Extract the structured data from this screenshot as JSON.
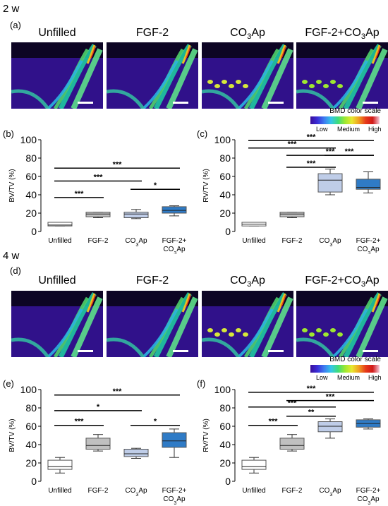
{
  "sections": [
    {
      "week": "2 w",
      "image_panel": "(a)",
      "image_titles": [
        "Unfilled",
        "FGF-2",
        "CO3Ap",
        "FGF-2+CO3Ap"
      ],
      "legend": {
        "title": "BMD color scale",
        "low": "Low",
        "medium": "Medium",
        "high": "High"
      }
    },
    {
      "week": "4 w",
      "image_panel": "(d)",
      "image_titles": [
        "Unfilled",
        "FGF-2",
        "CO3Ap",
        "FGF-2+CO3Ap"
      ],
      "legend": {
        "title": "BMD color scale",
        "low": "Low",
        "medium": "Medium",
        "high": "High"
      }
    }
  ],
  "chart_data": [
    {
      "panel": "(b)",
      "type": "boxplot",
      "ylabel": "BV/TV (%)",
      "ylim": [
        0,
        100
      ],
      "yticks": [
        "0",
        "20",
        "40",
        "60",
        "80",
        "100"
      ],
      "categories": [
        "Unfilled",
        "FGF-2",
        "CO3Ap",
        "FGF-2+ CO3Ap"
      ],
      "boxes": [
        {
          "min": 6,
          "q1": 6,
          "median": 7,
          "q3": 10,
          "max": 10,
          "fill": "#ffffff"
        },
        {
          "min": 15,
          "q1": 16,
          "median": 19,
          "q3": 21,
          "max": 21,
          "fill": "#c0c0c0"
        },
        {
          "min": 14,
          "q1": 15,
          "median": 19,
          "q3": 21,
          "max": 24,
          "fill": "#bfcde8"
        },
        {
          "min": 17,
          "q1": 20,
          "median": 23,
          "q3": 27,
          "max": 28,
          "fill": "#2f7bc6"
        }
      ],
      "significance": [
        {
          "from": 0,
          "to": 1,
          "y": 37,
          "label": "***"
        },
        {
          "from": 0,
          "to": 2,
          "y": 55,
          "label": "***"
        },
        {
          "from": 0,
          "to": 3,
          "y": 69,
          "label": "***"
        },
        {
          "from": 2,
          "to": 3,
          "y": 46,
          "label": "*"
        }
      ]
    },
    {
      "panel": "(c)",
      "type": "boxplot",
      "ylabel": "RV/TV (%)",
      "ylim": [
        0,
        100
      ],
      "yticks": [
        "0",
        "20",
        "40",
        "60",
        "80",
        "100"
      ],
      "categories": [
        "Unfilled",
        "FGF-2",
        "CO3Ap",
        "FGF-2+ CO3Ap"
      ],
      "boxes": [
        {
          "min": 6,
          "q1": 6,
          "median": 8,
          "q3": 10,
          "max": 10,
          "fill": "#ffffff"
        },
        {
          "min": 15,
          "q1": 16,
          "median": 19,
          "q3": 21,
          "max": 21,
          "fill": "#c0c0c0"
        },
        {
          "min": 40,
          "q1": 43,
          "median": 56,
          "q3": 63,
          "max": 68,
          "fill": "#bfcde8"
        },
        {
          "min": 42,
          "q1": 46,
          "median": 48,
          "q3": 57,
          "max": 65,
          "fill": "#2f7bc6"
        }
      ],
      "significance": [
        {
          "from": 2,
          "to": 3,
          "y": 83,
          "label": "***"
        },
        {
          "from": 0,
          "to": 2,
          "y": 91,
          "label": "***"
        },
        {
          "from": 1,
          "to": 3,
          "y": 83,
          "label": "***"
        },
        {
          "from": 0,
          "to": 3,
          "y": 99,
          "label": "***"
        },
        {
          "from": 1,
          "to": 2,
          "y": 70,
          "label": "***"
        }
      ]
    },
    {
      "panel": "(e)",
      "type": "boxplot",
      "ylabel": "BV/TV (%)",
      "ylim": [
        0,
        100
      ],
      "yticks": [
        "0",
        "20",
        "40",
        "60",
        "80",
        "100"
      ],
      "categories": [
        "Unfilled",
        "FGF-2",
        "CO3Ap",
        "FGF-2+ CO3Ap"
      ],
      "boxes": [
        {
          "min": 9,
          "q1": 13,
          "median": 16,
          "q3": 23,
          "max": 26,
          "fill": "#ffffff"
        },
        {
          "min": 33,
          "q1": 35,
          "median": 39,
          "q3": 47,
          "max": 51,
          "fill": "#c0c0c0"
        },
        {
          "min": 25,
          "q1": 27,
          "median": 30,
          "q3": 35,
          "max": 36,
          "fill": "#bfcde8"
        },
        {
          "min": 26,
          "q1": 37,
          "median": 44,
          "q3": 53,
          "max": 57,
          "fill": "#2f7bc6"
        }
      ],
      "significance": [
        {
          "from": 0,
          "to": 1,
          "y": 61,
          "label": "***"
        },
        {
          "from": 0,
          "to": 2,
          "y": 77,
          "label": "*"
        },
        {
          "from": 0,
          "to": 3,
          "y": 94,
          "label": "***"
        },
        {
          "from": 2,
          "to": 3,
          "y": 61,
          "label": "*"
        }
      ]
    },
    {
      "panel": "(f)",
      "type": "boxplot",
      "ylabel": "RV/TV (%)",
      "ylim": [
        0,
        100
      ],
      "yticks": [
        "0",
        "20",
        "40",
        "60",
        "80",
        "100"
      ],
      "categories": [
        "Unfilled",
        "FGF-2",
        "CO3Ap",
        "FGF-2+ CO3Ap"
      ],
      "boxes": [
        {
          "min": 9,
          "q1": 13,
          "median": 16,
          "q3": 23,
          "max": 26,
          "fill": "#ffffff"
        },
        {
          "min": 33,
          "q1": 35,
          "median": 39,
          "q3": 47,
          "max": 51,
          "fill": "#c0c0c0"
        },
        {
          "min": 47,
          "q1": 54,
          "median": 60,
          "q3": 65,
          "max": 68,
          "fill": "#bfcde8"
        },
        {
          "min": 57,
          "q1": 59,
          "median": 63,
          "q3": 67,
          "max": 68,
          "fill": "#2f7bc6"
        }
      ],
      "significance": [
        {
          "from": 0,
          "to": 1,
          "y": 61,
          "label": "***"
        },
        {
          "from": 1,
          "to": 2,
          "y": 71,
          "label": "**"
        },
        {
          "from": 0,
          "to": 2,
          "y": 81,
          "label": "***"
        },
        {
          "from": 1,
          "to": 3,
          "y": 88,
          "label": "***"
        },
        {
          "from": 0,
          "to": 3,
          "y": 97,
          "label": "***"
        }
      ]
    }
  ]
}
